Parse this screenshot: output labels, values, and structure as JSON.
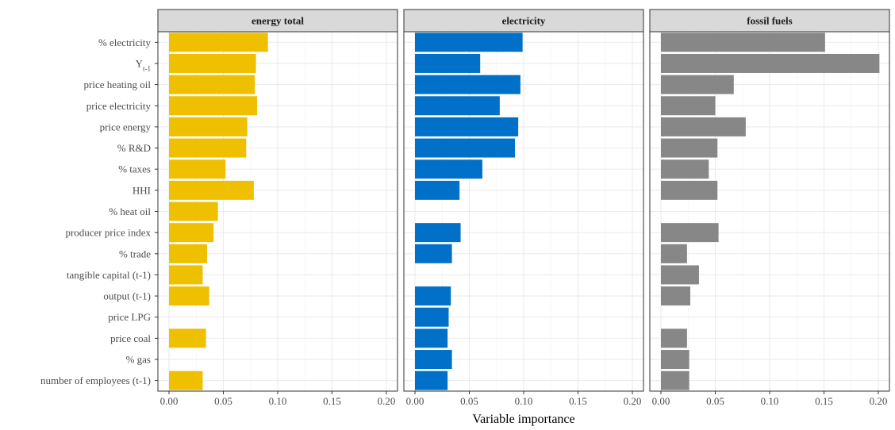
{
  "chart_data": {
    "type": "bar",
    "orientation": "horizontal",
    "xlabel": "Variable importance",
    "xlim": [
      0,
      0.2
    ],
    "xticks": [
      "0.00",
      "0.05",
      "0.10",
      "0.15",
      "0.20"
    ],
    "grid": true,
    "categories": [
      "% electricity",
      "Y",
      "price heating oil",
      "price electricity",
      "price energy",
      "% R&D",
      "% taxes",
      "HHI",
      "% heat oil",
      "producer price index",
      "% trade",
      "tangible capital (t-1)",
      "output (t-1)",
      "price LPG",
      "price coal",
      "% gas",
      "number of employees (t-1)"
    ],
    "category_subscripts": [
      "",
      "t-1",
      "",
      "",
      "",
      "",
      "",
      "",
      "",
      "",
      "",
      "",
      "",
      "",
      "",
      "",
      ""
    ],
    "panels": [
      {
        "title": "energy total",
        "color": "#EEC000",
        "values": [
          0.091,
          0.08,
          0.079,
          0.081,
          0.072,
          0.071,
          0.052,
          0.078,
          0.045,
          0.041,
          0.035,
          0.031,
          0.037,
          null,
          0.034,
          null,
          0.031
        ]
      },
      {
        "title": "electricity",
        "color": "#0070C8",
        "values": [
          0.099,
          0.06,
          0.097,
          0.078,
          0.095,
          0.092,
          0.062,
          0.041,
          null,
          0.042,
          0.034,
          null,
          0.033,
          0.031,
          0.03,
          0.034,
          0.03
        ]
      },
      {
        "title": "fossil fuels",
        "color": "#878787",
        "values": [
          0.151,
          0.201,
          0.067,
          0.05,
          0.078,
          0.052,
          0.044,
          0.052,
          null,
          0.053,
          0.024,
          0.035,
          0.027,
          null,
          0.024,
          0.026,
          0.026
        ]
      }
    ]
  }
}
